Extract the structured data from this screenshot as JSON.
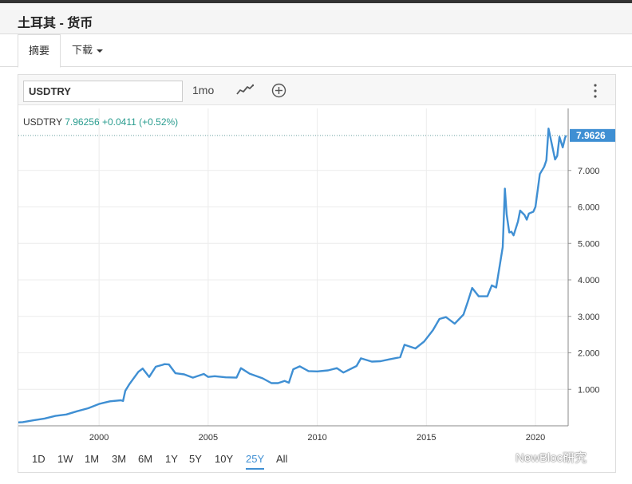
{
  "page": {
    "title": "土耳其 - 货币"
  },
  "tabs": {
    "summary": "摘要",
    "download": "下载"
  },
  "toolbar": {
    "symbol": "USDTRY",
    "interval": "1mo",
    "chart_type_icon": "line-chart-icon",
    "compare_icon": "plus-circle-icon",
    "menu_icon": "vertical-dots-icon"
  },
  "quote": {
    "symbol": "USDTRY",
    "last": "7.96256",
    "change": "+0.0411",
    "change_pct": "(+0.52%)"
  },
  "ranges": [
    "1D",
    "1W",
    "1M",
    "3M",
    "6M",
    "1Y",
    "5Y",
    "10Y",
    "25Y",
    "All"
  ],
  "active_range": "25Y",
  "watermark": "NewBloc研究",
  "colors": {
    "line": "#3f8fd3",
    "last_label_bg": "#3f8fd3",
    "quote_green": "#2a9d8f"
  },
  "chart_data": {
    "type": "line",
    "title": "",
    "series": [
      {
        "x": [
          1996.0,
          1996.5,
          1997.0,
          1997.5,
          1998.0,
          1998.5,
          1999.0,
          1999.5,
          2000.0,
          2000.5,
          2001.0,
          2001.1,
          2001.2,
          2001.4,
          2001.8,
          2002.0,
          2002.3,
          2002.6,
          2002.9,
          2003.0,
          2003.2,
          2003.5,
          2003.9,
          2004.3,
          2004.8,
          2005.0,
          2005.3,
          2005.8,
          2006.3,
          2006.5,
          2006.9,
          2007.5,
          2007.9,
          2008.2,
          2008.5,
          2008.7,
          2008.9,
          2009.2,
          2009.6,
          2010.0,
          2010.5,
          2010.9,
          2011.2,
          2011.8,
          2012.0,
          2012.5,
          2012.9,
          2013.3,
          2013.8,
          2014.0,
          2014.5,
          2014.9,
          2015.3,
          2015.6,
          2015.9,
          2016.3,
          2016.7,
          2016.9,
          2017.1,
          2017.4,
          2017.8,
          2018.0,
          2018.2,
          2018.5,
          2018.6,
          2018.68,
          2018.8,
          2018.9,
          2019.0,
          2019.2,
          2019.3,
          2019.5,
          2019.6,
          2019.7,
          2019.9,
          2020.0,
          2020.2,
          2020.4,
          2020.5,
          2020.6,
          2020.9,
          2021.0,
          2021.1,
          2021.25,
          2021.35,
          2021.4
        ],
        "y": [
          0.08,
          0.1,
          0.15,
          0.2,
          0.27,
          0.31,
          0.4,
          0.48,
          0.6,
          0.67,
          0.7,
          0.68,
          0.96,
          1.15,
          1.48,
          1.57,
          1.34,
          1.62,
          1.67,
          1.69,
          1.68,
          1.44,
          1.41,
          1.32,
          1.42,
          1.34,
          1.36,
          1.33,
          1.32,
          1.58,
          1.43,
          1.3,
          1.17,
          1.17,
          1.23,
          1.18,
          1.55,
          1.63,
          1.5,
          1.49,
          1.52,
          1.58,
          1.46,
          1.64,
          1.85,
          1.76,
          1.77,
          1.82,
          1.88,
          2.22,
          2.12,
          2.31,
          2.62,
          2.93,
          2.98,
          2.8,
          3.05,
          3.4,
          3.78,
          3.55,
          3.55,
          3.85,
          3.79,
          4.9,
          6.5,
          5.8,
          5.3,
          5.32,
          5.22,
          5.6,
          5.9,
          5.78,
          5.65,
          5.82,
          5.87,
          6.0,
          6.9,
          7.1,
          7.28,
          8.15,
          7.3,
          7.4,
          7.92,
          7.63,
          7.88,
          7.96
        ]
      }
    ],
    "ylabel": "",
    "xlabel": "",
    "ylim": [
      0,
      8.7
    ],
    "xlim": [
      1996.3,
      2021.5
    ],
    "y_ticks": [
      "1.000",
      "2.000",
      "3.000",
      "4.000",
      "5.000",
      "6.000",
      "7.000"
    ],
    "x_ticks": [
      "2000",
      "2005",
      "2010",
      "2015",
      "2020"
    ],
    "last_value_label": "7.9626",
    "grid": true
  }
}
